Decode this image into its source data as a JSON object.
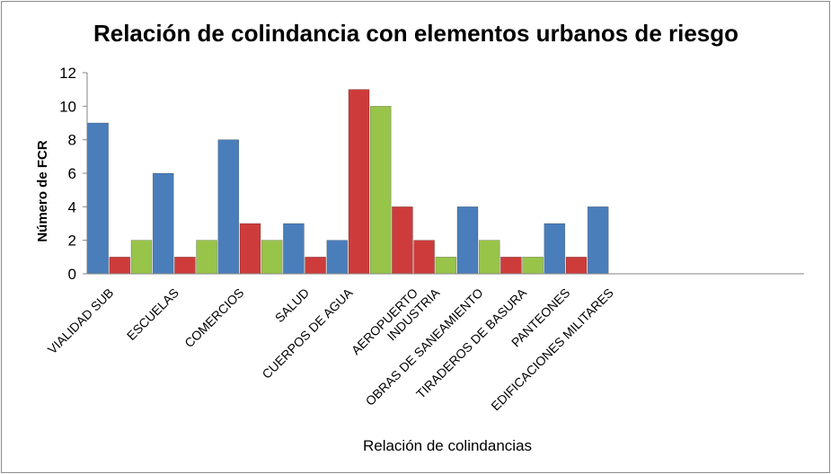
{
  "chart_data": {
    "type": "bar",
    "title": "Relación de colindancia con elementos urbanos de riesgo",
    "xlabel": "Relación de colindancias",
    "ylabel": "Número de FCR",
    "ylim": [
      0,
      12
    ],
    "yticks": [
      "0",
      "2",
      "4",
      "6",
      "8",
      "10",
      "12"
    ],
    "grid": false,
    "legend": "none",
    "colors": [
      "#4a7ebb",
      "#cd3c3a",
      "#98c44a"
    ],
    "bars": [
      {
        "x": "VIALIDAD SUB",
        "value": 9,
        "series": 0
      },
      {
        "x": "VIALIDAD SUB",
        "value": 1,
        "series": 1
      },
      {
        "x": "VIALIDAD SUB",
        "value": 2,
        "series": 2
      },
      {
        "x": "ESCUELAS",
        "value": 6,
        "series": 0
      },
      {
        "x": "ESCUELAS",
        "value": 1,
        "series": 1
      },
      {
        "x": "ESCUELAS",
        "value": 2,
        "series": 2
      },
      {
        "x": "COMERCIOS",
        "value": 8,
        "series": 0
      },
      {
        "x": "COMERCIOS",
        "value": 3,
        "series": 1
      },
      {
        "x": "COMERCIOS",
        "value": 2,
        "series": 2
      },
      {
        "x": "SALUD",
        "value": 3,
        "series": 0
      },
      {
        "x": "SALUD",
        "value": 1,
        "series": 1
      },
      {
        "x": "CUERPOS DE AGUA",
        "value": 2,
        "series": 0
      },
      {
        "x": "CUERPOS DE AGUA",
        "value": 11,
        "series": 1
      },
      {
        "x": "CUERPOS DE AGUA",
        "value": 10,
        "series": 2
      },
      {
        "x": "AEROPUERTO",
        "value": 4,
        "series": 1
      },
      {
        "x": "INDUSTRIA",
        "value": 2,
        "series": 1
      },
      {
        "x": "INDUSTRIA",
        "value": 1,
        "series": 2
      },
      {
        "x": "OBRAS DE SANEAMIENTO",
        "value": 4,
        "series": 0
      },
      {
        "x": "OBRAS DE SANEAMIENTO",
        "value": 2,
        "series": 2
      },
      {
        "x": "TIRADEROS DE BASURA",
        "value": 1,
        "series": 1
      },
      {
        "x": "TIRADEROS DE BASURA",
        "value": 1,
        "series": 2
      },
      {
        "x": "PANTEONES",
        "value": 3,
        "series": 0
      },
      {
        "x": "PANTEONES",
        "value": 1,
        "series": 1
      },
      {
        "x": "EDIFICACIONES MILITARES",
        "value": 4,
        "series": 0
      }
    ],
    "categories": [
      "VIALIDAD SUB",
      "ESCUELAS",
      "COMERCIOS",
      "SALUD",
      "CUERPOS DE AGUA",
      "AEROPUERTO",
      "INDUSTRIA",
      "OBRAS DE SANEAMIENTO",
      "TIRADEROS DE BASURA",
      "PANTEONES",
      "EDIFICACIONES MILITARES"
    ]
  }
}
